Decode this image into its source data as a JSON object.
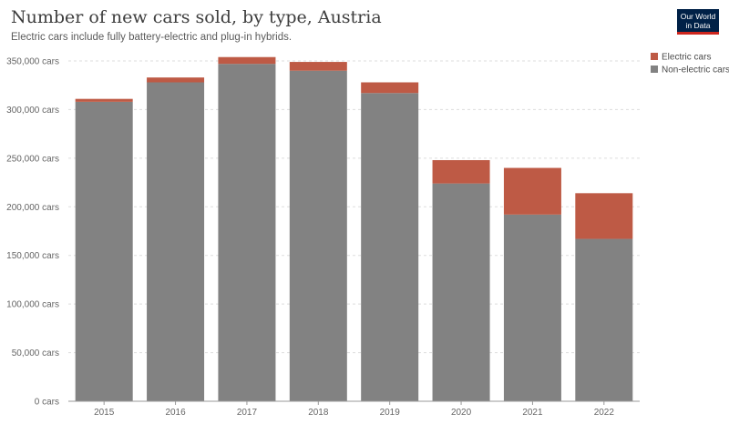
{
  "header": {
    "title": "Number of new cars sold, by type, Austria",
    "subtitle": "Electric cars include fully battery-electric and plug-in hybrids.",
    "logo_line1": "Our World",
    "logo_line2": "in Data"
  },
  "colors": {
    "electric": "#be5a45",
    "non_electric": "#828282"
  },
  "chart_data": {
    "type": "bar",
    "stacked": true,
    "title": "Number of new cars sold, by type, Austria",
    "subtitle": "Electric cars include fully battery-electric and plug-in hybrids.",
    "categories": [
      "2015",
      "2016",
      "2017",
      "2018",
      "2019",
      "2020",
      "2021",
      "2022"
    ],
    "series": [
      {
        "name": "Non-electric cars",
        "values": [
          308000,
          328000,
          347000,
          340000,
          317000,
          224000,
          192000,
          167000
        ]
      },
      {
        "name": "Electric cars",
        "values": [
          3000,
          5000,
          7000,
          9000,
          11000,
          24000,
          48000,
          47000
        ]
      }
    ],
    "ylim": [
      0,
      350000
    ],
    "yticks": [
      0,
      50000,
      100000,
      150000,
      200000,
      250000,
      300000,
      350000
    ],
    "ytick_labels": [
      "0 cars",
      "50,000 cars",
      "100,000 cars",
      "150,000 cars",
      "200,000 cars",
      "250,000 cars",
      "300,000 cars",
      "350,000 cars"
    ],
    "legend": [
      "Electric cars",
      "Non-electric cars"
    ],
    "legend_position": "top-right",
    "grid": true
  }
}
